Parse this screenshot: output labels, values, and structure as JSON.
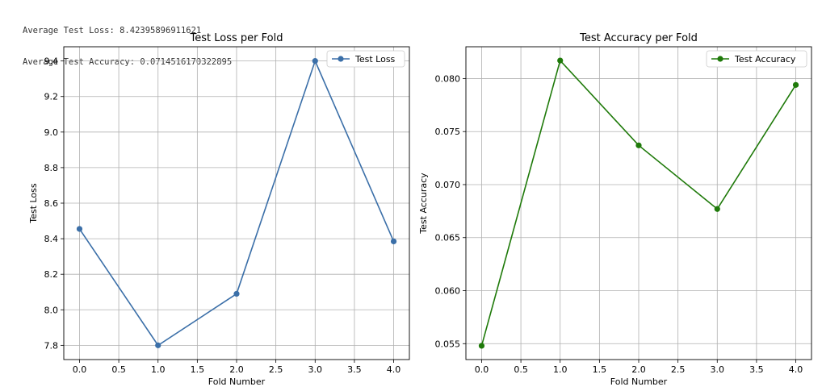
{
  "output": {
    "line1": "Average Test Loss: 8.42395896911621",
    "line2": "Average Test Accuracy: 0.0714516170322895"
  },
  "chart_data": [
    {
      "type": "line",
      "title": "Test Loss per Fold",
      "xlabel": "Fold Number",
      "ylabel": "Test Loss",
      "x": [
        0,
        1,
        2,
        3,
        4
      ],
      "xlim": [
        -0.2,
        4.2
      ],
      "ylim": [
        7.72,
        9.48
      ],
      "xticks": [
        "0.0",
        "0.5",
        "1.0",
        "1.5",
        "2.0",
        "2.5",
        "3.0",
        "3.5",
        "4.0"
      ],
      "xtick_values": [
        0,
        0.5,
        1,
        1.5,
        2,
        2.5,
        3,
        3.5,
        4
      ],
      "yticks": [
        "7.8",
        "8.0",
        "8.2",
        "8.4",
        "8.6",
        "8.8",
        "9.0",
        "9.2",
        "9.4"
      ],
      "ytick_values": [
        7.8,
        8.0,
        8.2,
        8.4,
        8.6,
        8.8,
        9.0,
        9.2,
        9.4
      ],
      "grid": true,
      "legend": "top-right",
      "series": [
        {
          "name": "Test Loss",
          "values": [
            8.455,
            7.8,
            8.09,
            9.4,
            8.385
          ],
          "color": "#3b6fa8"
        }
      ]
    },
    {
      "type": "line",
      "title": "Test Accuracy per Fold",
      "xlabel": "Fold Number",
      "ylabel": "Test Accuracy",
      "x": [
        0,
        1,
        2,
        3,
        4
      ],
      "xlim": [
        -0.2,
        4.2
      ],
      "ylim": [
        0.0535,
        0.083
      ],
      "xticks": [
        "0.0",
        "0.5",
        "1.0",
        "1.5",
        "2.0",
        "2.5",
        "3.0",
        "3.5",
        "4.0"
      ],
      "xtick_values": [
        0,
        0.5,
        1,
        1.5,
        2,
        2.5,
        3,
        3.5,
        4
      ],
      "yticks": [
        "0.055",
        "0.060",
        "0.065",
        "0.070",
        "0.075",
        "0.080"
      ],
      "ytick_values": [
        0.055,
        0.06,
        0.065,
        0.07,
        0.075,
        0.08
      ],
      "grid": true,
      "legend": "top-right",
      "series": [
        {
          "name": "Test Accuracy",
          "values": [
            0.0548,
            0.0817,
            0.0737,
            0.0677,
            0.0794
          ],
          "color": "#1f7a0a"
        }
      ]
    }
  ]
}
